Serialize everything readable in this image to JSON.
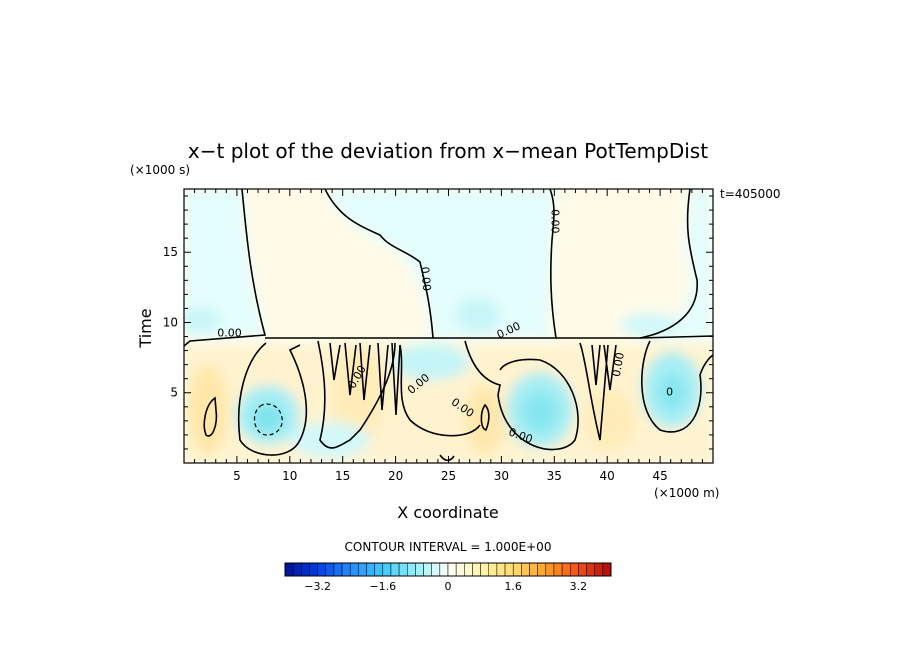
{
  "chart_data": {
    "type": "heatmap",
    "title": "x−t plot of the deviation from x−mean PotTempDist",
    "xlabel": "X coordinate",
    "ylabel": "Time",
    "x_units": "(×1000 m)",
    "y_units": "(×1000 s)",
    "time_stamp": "t=405000",
    "xlim": [
      0,
      50
    ],
    "ylim": [
      0,
      19.5
    ],
    "x_ticks": [
      5,
      10,
      15,
      20,
      25,
      30,
      35,
      40,
      45
    ],
    "y_ticks": [
      5,
      10,
      15
    ],
    "contour_interval_text": "CONTOUR INTERVAL = 1.000E+00",
    "contour_labels": [
      {
        "text": "0.00",
        "x": 4.3,
        "y": 9.2,
        "rotate": 0
      },
      {
        "text": "0.00",
        "x": 22.8,
        "y": 13.1,
        "rotate": 85
      },
      {
        "text": "0.00",
        "x": 35.0,
        "y": 17.2,
        "rotate": 90
      },
      {
        "text": "0.00",
        "x": 30.7,
        "y": 9.4,
        "rotate": -25
      },
      {
        "text": "0.00",
        "x": 16.4,
        "y": 6.1,
        "rotate": -60
      },
      {
        "text": "0.00",
        "x": 22.2,
        "y": 5.6,
        "rotate": -40
      },
      {
        "text": "0.00",
        "x": 26.3,
        "y": 3.9,
        "rotate": 35
      },
      {
        "text": "0.00",
        "x": 31.8,
        "y": 1.9,
        "rotate": 20
      },
      {
        "text": "0.00",
        "x": 41.1,
        "y": 7.0,
        "rotate": -80
      },
      {
        "text": "0",
        "x": 45.9,
        "y": 5.0,
        "rotate": 0
      }
    ],
    "colorbar": {
      "min": -4.0,
      "max": 4.0,
      "n_bins": 40,
      "tick_values": [
        -3.2,
        -1.6,
        0,
        1.6,
        3.2
      ],
      "tick_labels": [
        "−3.2",
        "−1.6",
        "0",
        "1.6",
        "3.2"
      ]
    }
  }
}
